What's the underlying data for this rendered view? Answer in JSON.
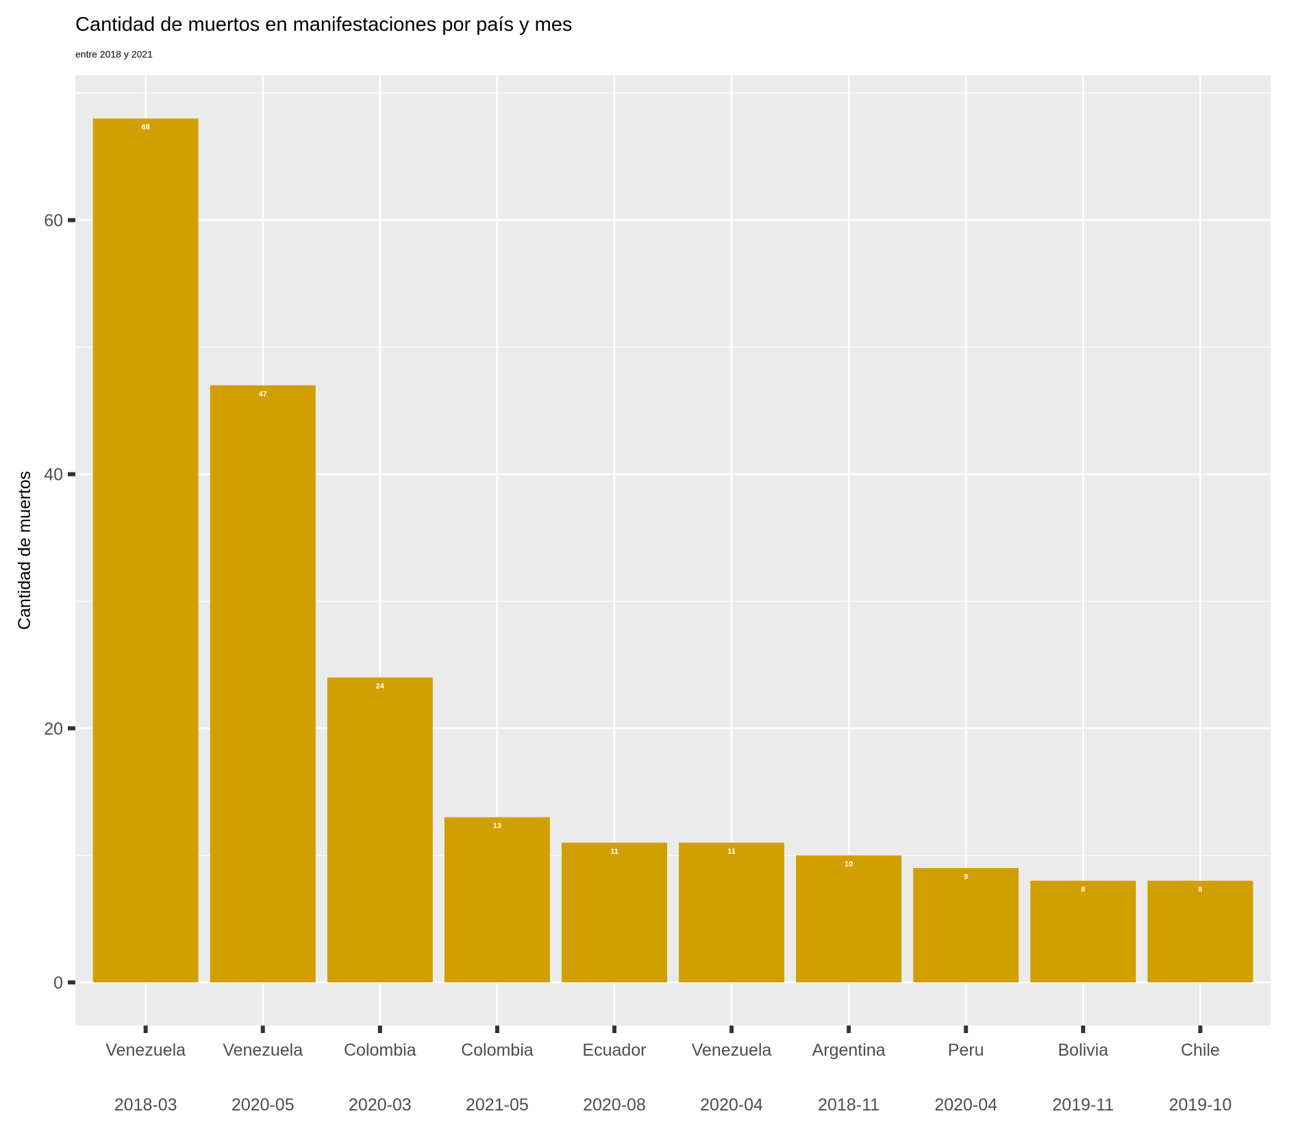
{
  "chart_data": {
    "type": "bar",
    "title": "Cantidad de muertos en manifestaciones por país y mes",
    "subtitle": "entre 2018 y 2021",
    "xlabel": "",
    "ylabel": "Cantidad de muertos",
    "ylim": [
      -3.4,
      71.4
    ],
    "y_ticks": [
      0,
      20,
      40,
      60
    ],
    "y_tick_labels": [
      "0",
      "20",
      "40",
      "60"
    ],
    "y_minor_gridlines": [
      10,
      30,
      50,
      70
    ],
    "grid": true,
    "legend": "none",
    "categories": [
      {
        "country": "Venezuela",
        "month": "2018-03"
      },
      {
        "country": "Venezuela",
        "month": "2020-05"
      },
      {
        "country": "Colombia",
        "month": "2020-03"
      },
      {
        "country": "Colombia",
        "month": "2021-05"
      },
      {
        "country": "Ecuador",
        "month": "2020-08"
      },
      {
        "country": "Venezuela",
        "month": "2020-04"
      },
      {
        "country": "Argentina",
        "month": "2018-11"
      },
      {
        "country": "Peru",
        "month": "2020-04"
      },
      {
        "country": "Bolivia",
        "month": "2019-11"
      },
      {
        "country": "Chile",
        "month": "2019-10"
      }
    ],
    "values": [
      68,
      47,
      24,
      13,
      11,
      11,
      10,
      9,
      8,
      8
    ],
    "data_labels": [
      "68",
      "47",
      "24",
      "13",
      "11",
      "11",
      "10",
      "9",
      "8",
      "8"
    ],
    "colors": {
      "bar": "#D1A000",
      "panel": "#EBEBEB",
      "grid": "#FFFFFF",
      "data_label": "#FFFFFF",
      "axis_text": "#4D4D4D",
      "tick": "#333333",
      "title": "#000000"
    }
  }
}
